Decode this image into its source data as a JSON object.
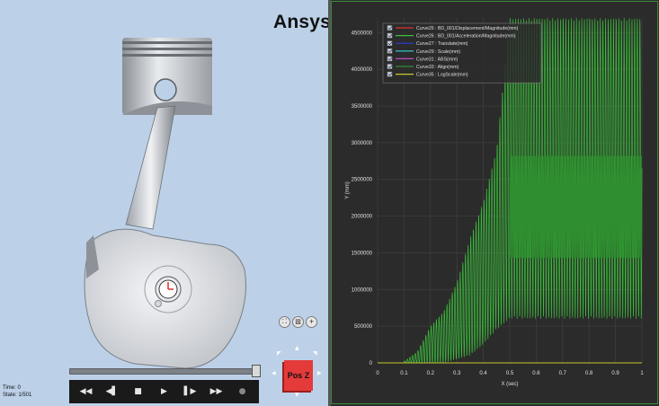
{
  "app": {
    "brand": "Ansys",
    "brand_color": "#000000"
  },
  "viewer": {
    "time_label": "Time: 0",
    "state_label": "State: 1/501",
    "view_tools": [
      {
        "icon": "fit-view-icon",
        "glyph": "⛶"
      },
      {
        "icon": "layers-icon",
        "glyph": "▧"
      },
      {
        "icon": "zoom-in-icon",
        "glyph": "+"
      }
    ],
    "timeline_progress": 1.0,
    "transport": [
      {
        "name": "first-frame-button",
        "icon": "rewind-icon",
        "glyph": "◀◀"
      },
      {
        "name": "prev-frame-button",
        "icon": "step-back-icon",
        "glyph": "◀▌"
      },
      {
        "name": "stop-button",
        "icon": "stop-icon",
        "glyph": "■"
      },
      {
        "name": "play-button",
        "icon": "play-icon",
        "glyph": "▶"
      },
      {
        "name": "next-frame-button",
        "icon": "step-forward-icon",
        "glyph": "▌▶"
      },
      {
        "name": "last-frame-button",
        "icon": "fast-forward-icon",
        "glyph": "▶▶"
      },
      {
        "name": "record-button",
        "icon": "record-icon",
        "glyph": "●"
      }
    ],
    "view_cube_label": "Pos Z",
    "view_cube_color": "#e43a3a",
    "background_color": "#bcd1e8"
  },
  "chart_data": {
    "type": "line",
    "title": "",
    "xlabel": "X (sec)",
    "ylabel": "Y (mm)",
    "xlim": [
      0,
      1
    ],
    "ylim": [
      0,
      4700000
    ],
    "x_ticks": [
      "0",
      "0.1",
      "0.2",
      "0.3",
      "0.4",
      "0.5",
      "0.6",
      "0.7",
      "0.8",
      "0.9",
      "1"
    ],
    "y_ticks": [
      "0",
      "500000",
      "1000000",
      "1500000",
      "2000000",
      "2500000",
      "3000000",
      "3500000",
      "4000000",
      "4500000"
    ],
    "grid": true,
    "legend_position": "top-left",
    "background": "#2b2b2b",
    "series": [
      {
        "name": "Curve25 : BD_001/Displacement/Magnitude(mm)",
        "color": "#e03030",
        "checked": true
      },
      {
        "name": "Curve26 : BD_001/Acceleration/Magnitude(mm)",
        "color": "#3bbf3b",
        "checked": true,
        "envelope": [
          {
            "x": 0.1,
            "low": 0,
            "high": 20000
          },
          {
            "x": 0.15,
            "low": 0,
            "high": 150000
          },
          {
            "x": 0.2,
            "low": 0,
            "high": 500000
          },
          {
            "x": 0.25,
            "low": 0,
            "high": 700000
          },
          {
            "x": 0.3,
            "low": 50000,
            "high": 1100000
          },
          {
            "x": 0.35,
            "low": 100000,
            "high": 1700000
          },
          {
            "x": 0.4,
            "low": 250000,
            "high": 2200000
          },
          {
            "x": 0.45,
            "low": 450000,
            "high": 2900000
          },
          {
            "x": 0.5,
            "low": 600000,
            "high": 4700000
          },
          {
            "x": 0.6,
            "low": 600000,
            "high": 4700000
          },
          {
            "x": 0.7,
            "low": 600000,
            "high": 4700000
          },
          {
            "x": 0.8,
            "low": 600000,
            "high": 4700000
          },
          {
            "x": 0.9,
            "low": 600000,
            "high": 4700000
          },
          {
            "x": 1.0,
            "low": 600000,
            "high": 4700000
          }
        ],
        "cycles": 90
      },
      {
        "name": "Curve27 : Translate(mm)",
        "color": "#2a3fd6",
        "checked": true
      },
      {
        "name": "Curve29 : Scale(mm)",
        "color": "#35d0e0",
        "checked": true
      },
      {
        "name": "Curve31 : ABS(mm)",
        "color": "#c04ac0",
        "checked": true
      },
      {
        "name": "Curve33 : Align(mm)",
        "color": "#2f8f2f",
        "checked": true,
        "envelope": [
          {
            "x": 0.5,
            "low": 1400000,
            "high": 2850000
          },
          {
            "x": 1.0,
            "low": 1400000,
            "high": 2850000
          }
        ]
      },
      {
        "name": "Curve35 : LogScale(mm)",
        "color": "#c8c832",
        "checked": true,
        "values_flat": 0
      }
    ]
  }
}
